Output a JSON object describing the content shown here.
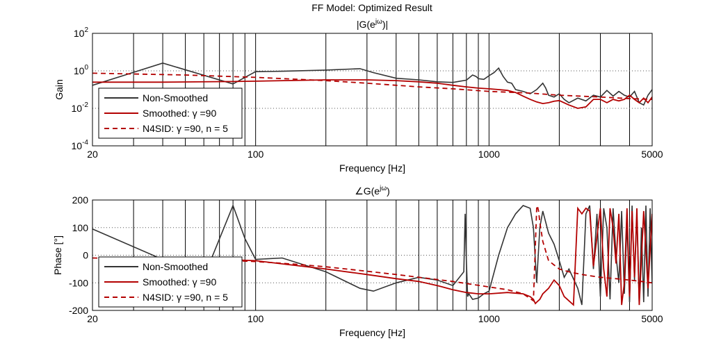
{
  "figure": {
    "title": "FF Model: Optimized Result"
  },
  "chart_data": [
    {
      "type": "line",
      "title": "|G(e^jω)|",
      "title_base": "|G(e",
      "title_sup": "jω",
      "title_tail": ")|",
      "xlabel": "Frequency [Hz]",
      "ylabel": "Gain",
      "xscale": "log",
      "yscale": "log",
      "xlim": [
        20,
        5000
      ],
      "ylim": [
        0.0001,
        100
      ],
      "xticks": [
        {
          "value": 20,
          "label": "20"
        },
        {
          "value": 100,
          "label": "100"
        },
        {
          "value": 1000,
          "label": "1000"
        },
        {
          "value": 5000,
          "label": "5000"
        }
      ],
      "yticks": [
        {
          "value": 0.0001,
          "base": "10",
          "exp": "-4"
        },
        {
          "value": 0.01,
          "base": "10",
          "exp": "-2"
        },
        {
          "value": 1,
          "base": "10",
          "exp": "0"
        },
        {
          "value": 100,
          "base": "10",
          "exp": "2"
        }
      ],
      "grid_x": [
        20,
        30,
        40,
        50,
        60,
        70,
        80,
        90,
        100,
        200,
        300,
        400,
        500,
        600,
        700,
        800,
        900,
        1000,
        2000,
        3000,
        4000,
        5000
      ],
      "legend": {
        "position": "bottom-left",
        "entries": [
          "Non-Smoothed",
          "Smoothed: γ =90",
          "N4SID: γ =90, n = 5"
        ]
      },
      "series": [
        {
          "name": "Non-Smoothed",
          "color": "#333333",
          "style": "solid",
          "x": [
            20,
            40,
            80,
            90,
            100,
            130,
            200,
            280,
            320,
            400,
            500,
            600,
            700,
            800,
            850,
            880,
            900,
            950,
            1000,
            1050,
            1100,
            1150,
            1200,
            1250,
            1300,
            1400,
            1500,
            1600,
            1700,
            1750,
            1800,
            1900,
            2000,
            2100,
            2200,
            2400,
            2600,
            2800,
            3000,
            3200,
            3400,
            3600,
            3800,
            4000,
            4200,
            4400,
            4600,
            4800,
            5000
          ],
          "y": [
            0.17,
            2.6,
            0.2,
            0.45,
            0.9,
            0.95,
            1.1,
            1.3,
            0.8,
            0.4,
            0.33,
            0.26,
            0.24,
            0.32,
            0.6,
            0.5,
            0.38,
            0.35,
            0.55,
            0.8,
            1.4,
            0.5,
            0.25,
            0.22,
            0.1,
            0.08,
            0.06,
            0.1,
            0.22,
            0.12,
            0.05,
            0.04,
            0.06,
            0.03,
            0.02,
            0.035,
            0.025,
            0.05,
            0.04,
            0.09,
            0.045,
            0.08,
            0.05,
            0.04,
            0.08,
            0.02,
            0.015,
            0.05,
            0.1
          ]
        },
        {
          "name": "Smoothed: γ =90",
          "color": "#b30000",
          "style": "solid",
          "x": [
            20,
            40,
            80,
            100,
            200,
            300,
            400,
            500,
            600,
            700,
            800,
            900,
            1000,
            1100,
            1200,
            1300,
            1400,
            1500,
            1600,
            1700,
            1800,
            1900,
            2000,
            2200,
            2400,
            2600,
            2800,
            3000,
            3200,
            3400,
            3600,
            3800,
            4000,
            4200,
            4400,
            4600,
            4800,
            5000
          ],
          "y": [
            0.25,
            0.25,
            0.27,
            0.28,
            0.33,
            0.33,
            0.3,
            0.26,
            0.22,
            0.17,
            0.14,
            0.12,
            0.11,
            0.1,
            0.09,
            0.07,
            0.045,
            0.03,
            0.022,
            0.018,
            0.02,
            0.024,
            0.026,
            0.015,
            0.01,
            0.012,
            0.03,
            0.03,
            0.02,
            0.03,
            0.025,
            0.03,
            0.05,
            0.03,
            0.02,
            0.035,
            0.02,
            0.04
          ]
        },
        {
          "name": "N4SID: γ =90, n = 5",
          "color": "#b30000",
          "style": "dashed",
          "x": [
            20,
            50,
            100,
            200,
            300,
            400,
            500,
            700,
            1000,
            1500,
            2000,
            3000,
            4000,
            5000
          ],
          "y": [
            0.75,
            0.6,
            0.45,
            0.3,
            0.22,
            0.17,
            0.14,
            0.11,
            0.08,
            0.065,
            0.05,
            0.04,
            0.033,
            0.03
          ]
        }
      ]
    },
    {
      "type": "line",
      "title": "∠G(e^jω)",
      "title_base": "∠G(e",
      "title_sup": "jω",
      "title_tail": ")",
      "xlabel": "Frequency [Hz]",
      "ylabel": "Phase [°]",
      "xscale": "log",
      "yscale": "linear",
      "xlim": [
        20,
        5000
      ],
      "ylim": [
        -200,
        200
      ],
      "xticks": [
        {
          "value": 20,
          "label": "20"
        },
        {
          "value": 100,
          "label": "100"
        },
        {
          "value": 1000,
          "label": "1000"
        },
        {
          "value": 5000,
          "label": "5000"
        }
      ],
      "yticks": [
        {
          "value": -200,
          "label": "-200"
        },
        {
          "value": -100,
          "label": "-100"
        },
        {
          "value": 0,
          "label": "0"
        },
        {
          "value": 100,
          "label": "100"
        },
        {
          "value": 200,
          "label": "200"
        }
      ],
      "grid_x": [
        20,
        30,
        40,
        50,
        60,
        70,
        80,
        90,
        100,
        200,
        300,
        400,
        500,
        600,
        700,
        800,
        900,
        1000,
        2000,
        3000,
        4000,
        5000
      ],
      "legend": {
        "position": "bottom-left",
        "entries": [
          "Non-Smoothed",
          "Smoothed: γ =90",
          "N4SID: γ =90, n = 5"
        ]
      },
      "series": [
        {
          "name": "Non-Smoothed",
          "color": "#333333",
          "style": "solid",
          "x": [
            20,
            60,
            80,
            90,
            100,
            130,
            200,
            280,
            320,
            400,
            500,
            600,
            700,
            780,
            790,
            800,
            810,
            820,
            850,
            900,
            950,
            1000,
            1100,
            1200,
            1300,
            1400,
            1500,
            1550,
            1600,
            1650,
            1700,
            1800,
            1900,
            2000,
            2100,
            2200,
            2400,
            2500,
            2600,
            2700,
            2800,
            2900,
            3000,
            3100,
            3200,
            3300,
            3400,
            3500,
            3600,
            3700,
            3800,
            3900,
            4000,
            4100,
            4200,
            4300,
            4400,
            4500,
            4600,
            4700,
            4800,
            4900,
            5000
          ],
          "y": [
            95,
            -80,
            180,
            60,
            -15,
            -10,
            -60,
            -120,
            -130,
            -100,
            -80,
            -90,
            -110,
            -60,
            150,
            -20,
            -150,
            -140,
            -160,
            -155,
            -140,
            -130,
            0,
            100,
            150,
            180,
            170,
            100,
            -100,
            100,
            160,
            80,
            40,
            -20,
            -80,
            -50,
            -120,
            -180,
            150,
            180,
            -50,
            150,
            -150,
            170,
            100,
            -160,
            170,
            0,
            -100,
            160,
            -140,
            120,
            -170,
            180,
            -90,
            150,
            -180,
            100,
            -170,
            180,
            -150,
            170,
            -100
          ]
        },
        {
          "name": "Smoothed: γ =90",
          "color": "#b30000",
          "style": "solid",
          "x": [
            70,
            100,
            200,
            300,
            400,
            500,
            600,
            700,
            800,
            900,
            1000,
            1200,
            1400,
            1500,
            1550,
            1580,
            1600,
            1650,
            1700,
            1800,
            1900,
            2000,
            2100,
            2300,
            2400,
            2500,
            2600,
            2700,
            2800,
            3000,
            3100,
            3200,
            3300,
            3400,
            3500,
            3600,
            3700,
            3800,
            3900,
            4000,
            4100,
            4200,
            4300,
            4400,
            4600,
            4800,
            5000
          ],
          "y": [
            -15,
            -20,
            -50,
            -70,
            -85,
            -95,
            -110,
            -125,
            -135,
            -140,
            -140,
            -135,
            -140,
            -150,
            -160,
            -175,
            -170,
            -160,
            -140,
            -120,
            -90,
            -110,
            -150,
            -180,
            170,
            150,
            170,
            160,
            -40,
            170,
            -50,
            -150,
            170,
            100,
            -30,
            150,
            -180,
            -100,
            170,
            -150,
            160,
            -80,
            170,
            -180,
            160,
            -120,
            150
          ]
        },
        {
          "name": "N4SID: γ =90, n = 5",
          "color": "#b30000",
          "style": "dashed",
          "x": [
            20,
            40,
            60,
            80,
            100,
            150,
            200,
            300,
            400,
            500,
            700,
            1000,
            1200,
            1400,
            1550,
            1600,
            1610,
            1630,
            1650,
            1700,
            1800,
            2000,
            2200,
            2500,
            3000,
            3500,
            4000,
            4500,
            5000
          ],
          "y": [
            -10,
            -14,
            -17,
            -20,
            -23,
            -33,
            -42,
            -58,
            -70,
            -80,
            -95,
            -115,
            -125,
            -140,
            -165,
            170,
            180,
            160,
            120,
            50,
            -20,
            -50,
            -60,
            -70,
            -80,
            -85,
            -90,
            -95,
            -100
          ]
        }
      ]
    }
  ]
}
